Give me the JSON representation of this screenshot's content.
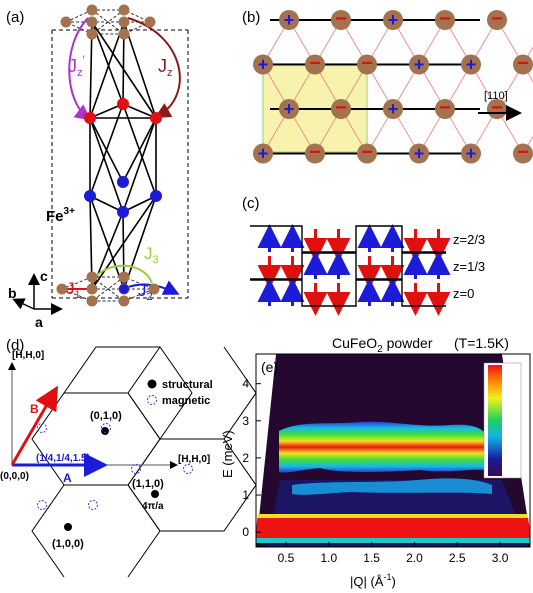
{
  "panel_a": {
    "label": "(a)",
    "ion": "Fe",
    "ion_charge": "3+",
    "couplings": {
      "jz_prime": "J",
      "jz_prime_sub": "z",
      "jz_prime_mark": "′",
      "jz": "J",
      "jz_sub": "z",
      "j1": "J",
      "j1_sub": "1",
      "j2": "J",
      "j2_sub": "2",
      "j3": "J",
      "j3_sub": "3"
    },
    "axes": {
      "c": "c",
      "b": "b",
      "a": "a"
    },
    "colors": {
      "atom": "#a3724f",
      "spin_up": "#1b1bd8",
      "spin_down": "#e01010",
      "jz": "#8b1a1a",
      "jz_prime": "#b030d0",
      "j1": "#e01010",
      "j2": "#1b1bd8",
      "j3": "#9ccc3c"
    }
  },
  "panel_b": {
    "label": "(b)",
    "direction": "[110]",
    "rows": [
      [
        "+",
        "−",
        "+",
        "−",
        "−",
        "+"
      ],
      [
        "+",
        "−",
        "−",
        "+",
        "+",
        "−"
      ],
      [
        "+",
        "−",
        "+",
        "−",
        "−",
        "+"
      ],
      [
        "+",
        "−",
        "−",
        "+",
        "+",
        "−"
      ]
    ],
    "highlight_color": "#f6f29e"
  },
  "panel_c": {
    "label": "(c)",
    "layers": [
      {
        "z": "z=2/3",
        "spins": [
          "up",
          "up",
          "down",
          "down",
          "up",
          "up",
          "down",
          "down"
        ]
      },
      {
        "z": "z=1/3",
        "spins": [
          "down",
          "down",
          "up",
          "up",
          "down",
          "down",
          "up",
          "up"
        ]
      },
      {
        "z": "z=0",
        "spins": [
          "up",
          "up",
          "down",
          "down",
          "up",
          "up",
          "down",
          "down"
        ]
      }
    ]
  },
  "panel_d": {
    "label": "(d)",
    "axis_y": "[H̄,H,0]",
    "axis_x": "[H,H,0]",
    "legend": {
      "structural": "structural",
      "magnetic": "magnetic"
    },
    "points": {
      "origin": "(0,0,0)",
      "p010": "(0,1,0)",
      "p110": "(1,1,0)",
      "p100": "(1,0,0)",
      "q": "(1/4,1/4,1.5)",
      "scale": "4π/a"
    },
    "vectors": {
      "a": "A",
      "b": "B"
    }
  },
  "panel_e": {
    "label": "(e)",
    "title": "CuFeO",
    "title_sub": "2",
    "title_rest": " powder",
    "temperature": "(T=1.5K)",
    "xlabel": "|Q| (Å",
    "xlabel_sup": "-1",
    "xlabel_end": ")",
    "ylabel": "E (meV)",
    "xticks": [
      "0.5",
      "1.0",
      "1.5",
      "2.0",
      "2.5",
      "3.0"
    ],
    "yticks": [
      "0",
      "1",
      "2",
      "3",
      "4"
    ]
  },
  "chart_data": {
    "type": "heatmap",
    "xlabel": "|Q| (Å-1)",
    "ylabel": "E (meV)",
    "title": "CuFeO2 powder",
    "xlim": [
      0.15,
      3.35
    ],
    "ylim": [
      -0.4,
      4.8
    ],
    "xticks": [
      0.5,
      1.0,
      1.5,
      2.0,
      2.5,
      3.0
    ],
    "yticks": [
      0,
      1,
      2,
      3,
      4
    ],
    "features": [
      {
        "name": "elastic",
        "q_range": [
          0.2,
          3.3
        ],
        "e_range": [
          -0.3,
          0.3
        ],
        "level": "high"
      },
      {
        "name": "spin-wave band",
        "q_range": [
          0.65,
          2.55
        ],
        "e_range": [
          1.5,
          2.7
        ],
        "level": "high"
      },
      {
        "name": "weak band",
        "q_range": [
          0.9,
          2.6
        ],
        "e_range": [
          0.75,
          1.1
        ],
        "level": "low"
      }
    ]
  }
}
